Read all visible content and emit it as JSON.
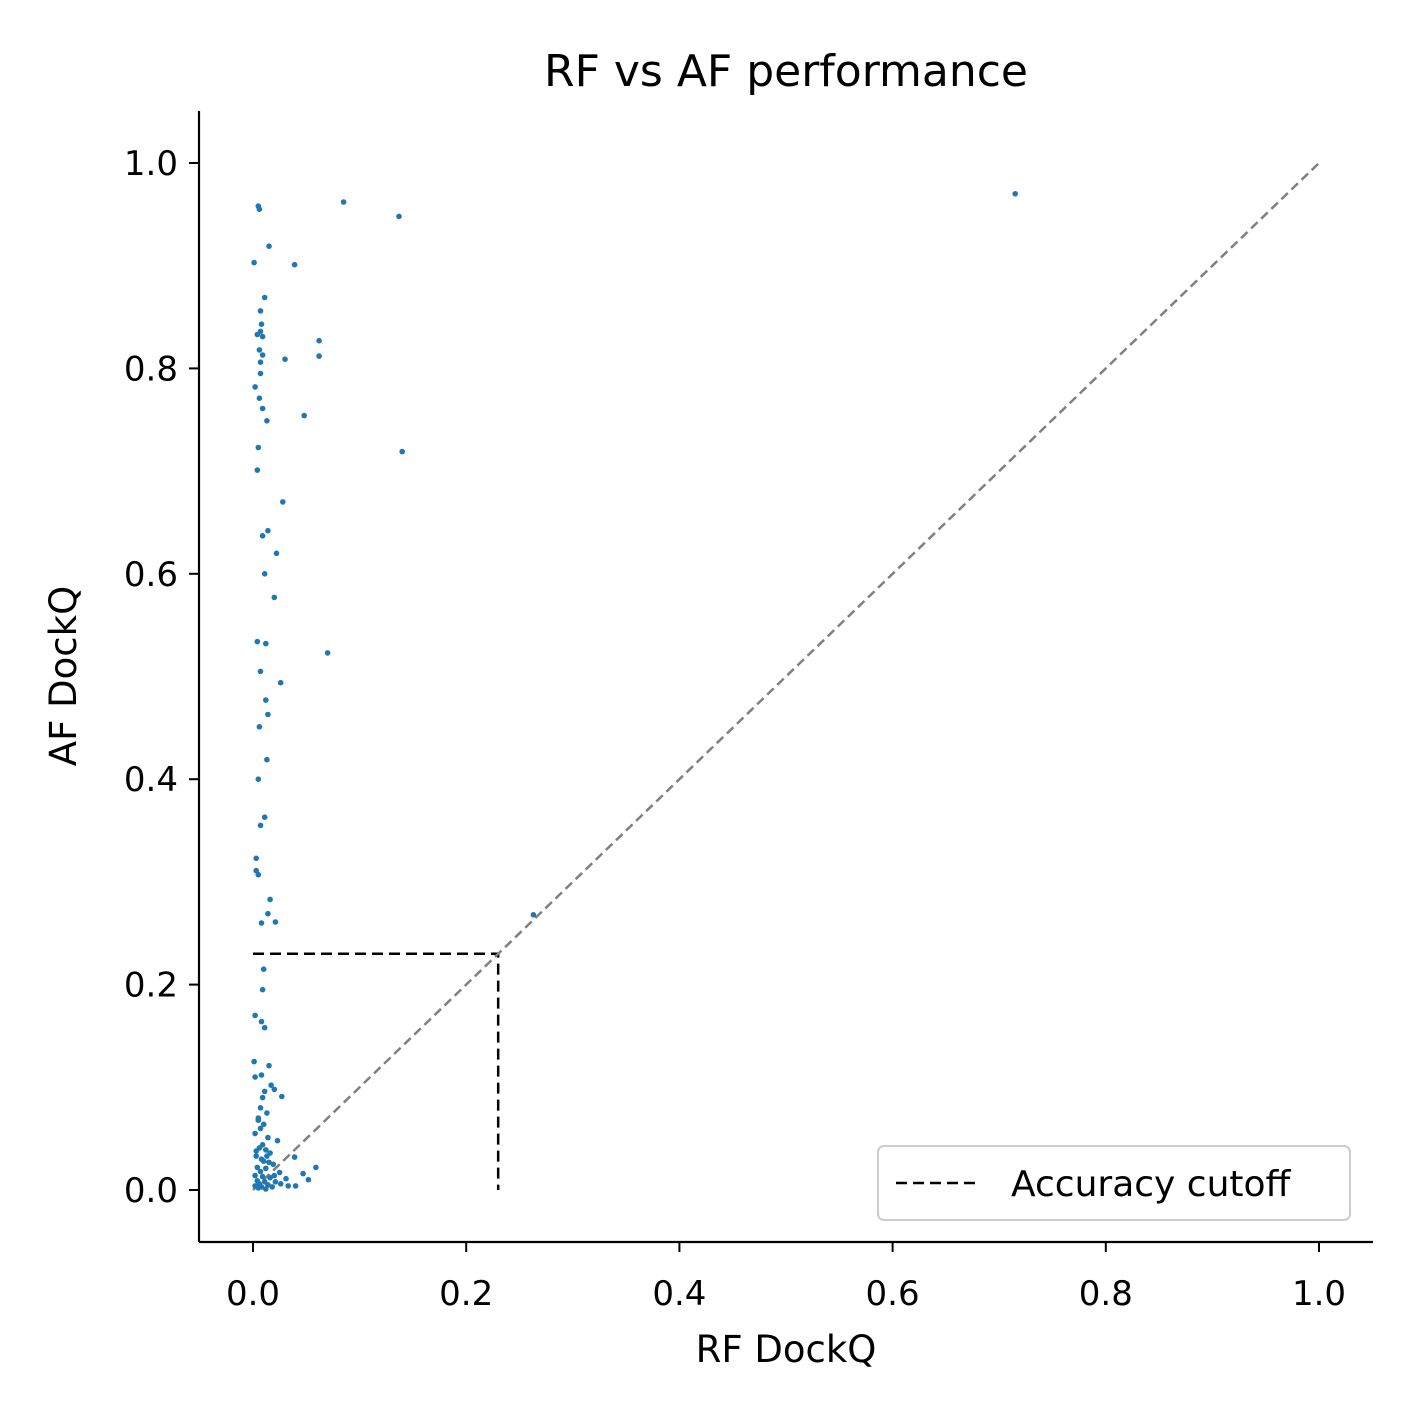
{
  "chart_data": {
    "type": "scatter",
    "title": "RF vs AF performance",
    "xlabel": "RF DockQ",
    "ylabel": "AF DockQ",
    "xlim": [
      -0.05,
      1.05
    ],
    "ylim": [
      -0.05,
      1.05
    ],
    "xticks": [
      "0.0",
      "0.2",
      "0.4",
      "0.6",
      "0.8",
      "1.0"
    ],
    "yticks": [
      "0.0",
      "0.2",
      "0.4",
      "0.6",
      "0.8",
      "1.0"
    ],
    "grid": false,
    "legend_position": "lower-right",
    "colors": {
      "points": "#1f77b4",
      "diagonal": "#808080",
      "cutoff": "#000000"
    },
    "cutoff": {
      "label": "Accuracy cutoff",
      "value": 0.23
    },
    "diagonal": [
      [
        0,
        0
      ],
      [
        1,
        1
      ]
    ],
    "points": [
      [
        0.005,
        0.958
      ],
      [
        0.006,
        0.955
      ],
      [
        0.085,
        0.962
      ],
      [
        0.137,
        0.948
      ],
      [
        0.715,
        0.97
      ],
      [
        0.015,
        0.919
      ],
      [
        0.001,
        0.903
      ],
      [
        0.039,
        0.901
      ],
      [
        0.011,
        0.869
      ],
      [
        0.007,
        0.856
      ],
      [
        0.008,
        0.843
      ],
      [
        0.007,
        0.836
      ],
      [
        0.004,
        0.833
      ],
      [
        0.009,
        0.831
      ],
      [
        0.062,
        0.827
      ],
      [
        0.006,
        0.818
      ],
      [
        0.009,
        0.813
      ],
      [
        0.062,
        0.812
      ],
      [
        0.03,
        0.809
      ],
      [
        0.007,
        0.806
      ],
      [
        0.007,
        0.795
      ],
      [
        0.002,
        0.782
      ],
      [
        0.006,
        0.771
      ],
      [
        0.009,
        0.761
      ],
      [
        0.048,
        0.754
      ],
      [
        0.013,
        0.749
      ],
      [
        0.14,
        0.719
      ],
      [
        0.005,
        0.723
      ],
      [
        0.004,
        0.701
      ],
      [
        0.028,
        0.67
      ],
      [
        0.014,
        0.642
      ],
      [
        0.009,
        0.637
      ],
      [
        0.022,
        0.62
      ],
      [
        0.011,
        0.6
      ],
      [
        0.02,
        0.577
      ],
      [
        0.004,
        0.534
      ],
      [
        0.012,
        0.532
      ],
      [
        0.07,
        0.523
      ],
      [
        0.007,
        0.505
      ],
      [
        0.026,
        0.494
      ],
      [
        0.012,
        0.477
      ],
      [
        0.014,
        0.463
      ],
      [
        0.006,
        0.451
      ],
      [
        0.013,
        0.419
      ],
      [
        0.005,
        0.4
      ],
      [
        0.011,
        0.363
      ],
      [
        0.007,
        0.355
      ],
      [
        0.003,
        0.323
      ],
      [
        0.003,
        0.311
      ],
      [
        0.005,
        0.307
      ],
      [
        0.016,
        0.283
      ],
      [
        0.014,
        0.269
      ],
      [
        0.263,
        0.268
      ],
      [
        0.021,
        0.261
      ],
      [
        0.008,
        0.26
      ],
      [
        0.01,
        0.215
      ],
      [
        0.009,
        0.195
      ],
      [
        0.002,
        0.17
      ],
      [
        0.008,
        0.164
      ],
      [
        0.011,
        0.158
      ],
      [
        0.001,
        0.125
      ],
      [
        0.015,
        0.121
      ],
      [
        0.002,
        0.11
      ],
      [
        0.008,
        0.112
      ],
      [
        0.017,
        0.102
      ],
      [
        0.02,
        0.098
      ],
      [
        0.011,
        0.096
      ],
      [
        0.009,
        0.09
      ],
      [
        0.027,
        0.091
      ],
      [
        0.007,
        0.08
      ],
      [
        0.013,
        0.075
      ],
      [
        0.005,
        0.068
      ],
      [
        0.01,
        0.064
      ],
      [
        0.002,
        0.055
      ],
      [
        0.014,
        0.051
      ],
      [
        0.023,
        0.048
      ],
      [
        0.006,
        0.041
      ],
      [
        0.012,
        0.039
      ],
      [
        0.016,
        0.036
      ],
      [
        0.003,
        0.033
      ],
      [
        0.008,
        0.03
      ],
      [
        0.01,
        0.028
      ],
      [
        0.019,
        0.025
      ],
      [
        0.039,
        0.032
      ],
      [
        0.004,
        0.022
      ],
      [
        0.012,
        0.021
      ],
      [
        0.059,
        0.022
      ],
      [
        0.007,
        0.018
      ],
      [
        0.025,
        0.017
      ],
      [
        0.047,
        0.016
      ],
      [
        0.002,
        0.014
      ],
      [
        0.009,
        0.013
      ],
      [
        0.016,
        0.012
      ],
      [
        0.031,
        0.011
      ],
      [
        0.004,
        0.009
      ],
      [
        0.011,
        0.008
      ],
      [
        0.021,
        0.008
      ],
      [
        0.052,
        0.01
      ],
      [
        0.006,
        0.006
      ],
      [
        0.014,
        0.005
      ],
      [
        0.026,
        0.006
      ],
      [
        0.033,
        0.004
      ],
      [
        0.002,
        0.004
      ],
      [
        0.008,
        0.003
      ],
      [
        0.018,
        0.003
      ],
      [
        0.04,
        0.004
      ],
      [
        0.005,
        0.002
      ],
      [
        0.012,
        0.001
      ],
      [
        0.003,
        0.038
      ],
      [
        0.009,
        0.044
      ],
      [
        0.015,
        0.027
      ],
      [
        0.007,
        0.06
      ],
      [
        0.02,
        0.014
      ],
      [
        0.005,
        0.07
      ],
      [
        0.013,
        0.033
      ]
    ]
  }
}
